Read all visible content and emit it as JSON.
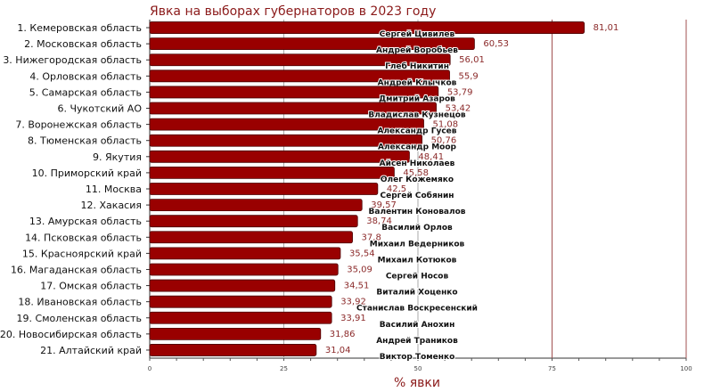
{
  "chart_data": {
    "type": "bar",
    "orientation": "horizontal",
    "title": "Явка на выборах губернаторов в 2023 году",
    "xlabel": "% явки",
    "xlim": [
      0,
      100
    ],
    "xticks": [
      0,
      25,
      50,
      75,
      100
    ],
    "grid": true,
    "bar_color": "#990000",
    "categories": [
      "1. Кемеровская область",
      "2. Московская область",
      "3. Нижегородская область",
      "4. Орловская область",
      "5. Самарская область",
      "6. Чукотский АО",
      "7. Воронежская область",
      "8. Тюменская область",
      "9. Якутия",
      "10. Приморский край",
      "11. Москва",
      "12. Хакасия",
      "13. Амурская область",
      "14. Псковская область",
      "15. Красноярский край",
      "16. Магаданская область",
      "17. Омская область",
      "18. Ивановская область",
      "19. Смоленская область",
      "20. Новосибирская область",
      "21. Алтайский край"
    ],
    "values": [
      81.01,
      60.53,
      56.01,
      55.9,
      53.79,
      53.42,
      51.08,
      50.76,
      48.41,
      45.58,
      42.5,
      39.57,
      38.74,
      37.8,
      35.54,
      35.09,
      34.51,
      33.92,
      33.91,
      31.86,
      31.04
    ],
    "value_labels": [
      "81,01",
      "60,53",
      "56,01",
      "55,9",
      "53,79",
      "53,42",
      "51,08",
      "50,76",
      "48,41",
      "45,58",
      "42,5",
      "39,57",
      "38,74",
      "37,8",
      "35,54",
      "35,09",
      "34,51",
      "33,92",
      "33,91",
      "31,86",
      "31,04"
    ],
    "governors": [
      "Сергей Цивилев",
      "Андрей Воробьев",
      "Глеб Никитин",
      "Андрей Клычков",
      "Дмитрий Азаров",
      "Владислав Кузнецов",
      "Александр Гусев",
      "Александр Моор",
      "Айсен Николаев",
      "Олег Кожемяко",
      "Сергей Собянин",
      "Валентин Коновалов",
      "Василий Орлов",
      "Михаил Ведерников",
      "Михаил Котюков",
      "Сергей Носов",
      "Виталий Хоценко",
      "Станислав Воскресенский",
      "Василий Анохин",
      "Андрей Траников",
      "Виктор Томенко"
    ]
  }
}
